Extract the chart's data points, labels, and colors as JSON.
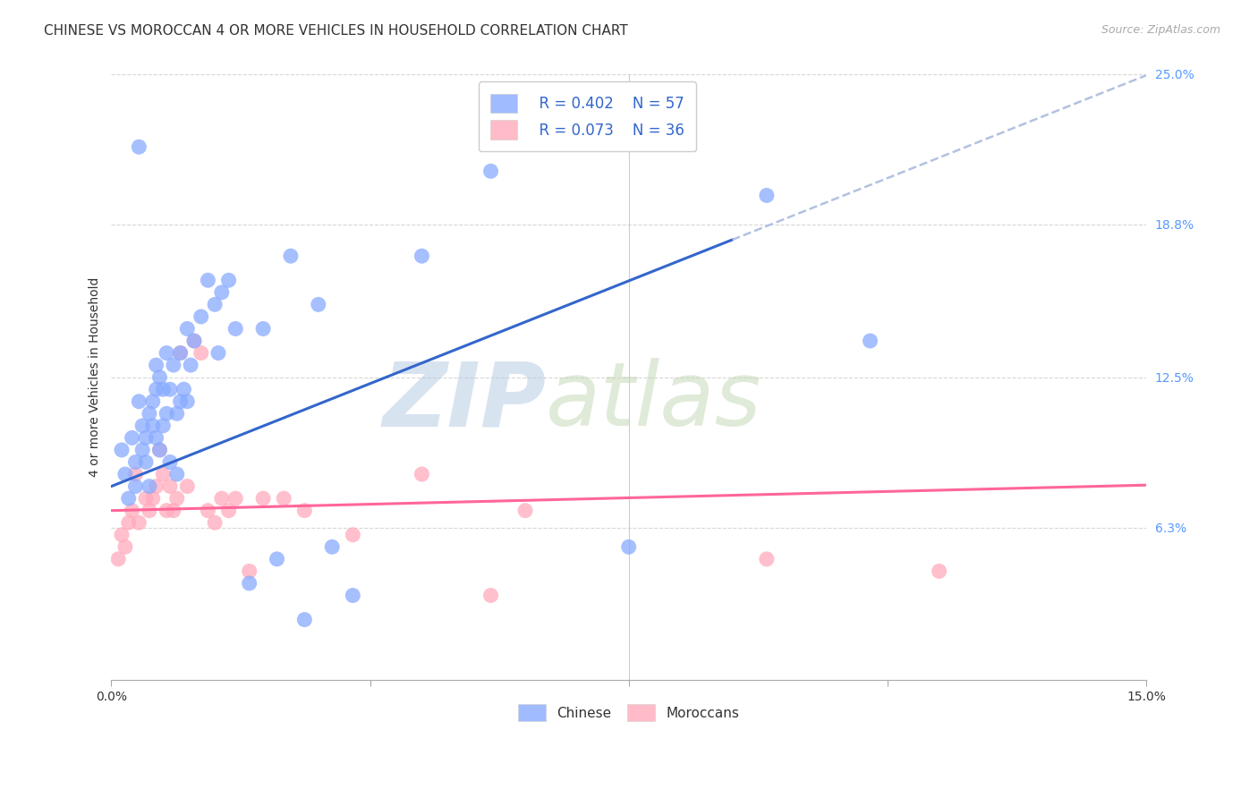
{
  "title": "CHINESE VS MOROCCAN 4 OR MORE VEHICLES IN HOUSEHOLD CORRELATION CHART",
  "source_text": "Source: ZipAtlas.com",
  "ylabel": "4 or more Vehicles in Household",
  "xlim": [
    0.0,
    15.0
  ],
  "ylim": [
    0.0,
    25.0
  ],
  "xtick_positions": [
    0.0,
    3.75,
    7.5,
    11.25,
    15.0
  ],
  "xtick_labels": [
    "0.0%",
    "",
    "",
    "",
    "15.0%"
  ],
  "ytick_positions": [
    6.3,
    12.5,
    18.8,
    25.0
  ],
  "ytick_labels": [
    "6.3%",
    "12.5%",
    "18.8%",
    "25.0%"
  ],
  "watermark_zip": "ZIP",
  "watermark_atlas": "atlas",
  "chinese_color": "#88aaff",
  "moroccan_color": "#ffaabb",
  "chinese_line_color": "#3366cc",
  "moroccan_line_color": "#ff6699",
  "chinese_R": 0.402,
  "chinese_N": 57,
  "moroccan_R": 0.073,
  "moroccan_N": 36,
  "chinese_line_intercept": 8.0,
  "chinese_line_slope": 1.13,
  "moroccan_line_intercept": 7.0,
  "moroccan_line_slope": 0.07,
  "chinese_line_solid_end": 9.0,
  "chinese_scatter_x": [
    0.15,
    0.2,
    0.25,
    0.3,
    0.35,
    0.35,
    0.4,
    0.4,
    0.45,
    0.45,
    0.5,
    0.5,
    0.55,
    0.55,
    0.6,
    0.6,
    0.65,
    0.65,
    0.65,
    0.7,
    0.7,
    0.75,
    0.75,
    0.8,
    0.8,
    0.85,
    0.85,
    0.9,
    0.95,
    0.95,
    1.0,
    1.0,
    1.05,
    1.1,
    1.1,
    1.15,
    1.2,
    1.3,
    1.4,
    1.5,
    1.55,
    1.6,
    1.7,
    1.8,
    2.0,
    2.2,
    2.4,
    2.6,
    2.8,
    3.0,
    3.2,
    3.5,
    4.5,
    5.5,
    7.5,
    9.5,
    11.0
  ],
  "chinese_scatter_y": [
    9.5,
    8.5,
    7.5,
    10.0,
    9.0,
    8.0,
    22.0,
    11.5,
    9.5,
    10.5,
    10.0,
    9.0,
    8.0,
    11.0,
    11.5,
    10.5,
    13.0,
    12.0,
    10.0,
    12.5,
    9.5,
    12.0,
    10.5,
    13.5,
    11.0,
    12.0,
    9.0,
    13.0,
    11.0,
    8.5,
    13.5,
    11.5,
    12.0,
    14.5,
    11.5,
    13.0,
    14.0,
    15.0,
    16.5,
    15.5,
    13.5,
    16.0,
    16.5,
    14.5,
    4.0,
    14.5,
    5.0,
    17.5,
    2.5,
    15.5,
    5.5,
    3.5,
    17.5,
    21.0,
    5.5,
    20.0,
    14.0
  ],
  "moroccan_scatter_x": [
    0.1,
    0.15,
    0.2,
    0.25,
    0.3,
    0.35,
    0.4,
    0.5,
    0.55,
    0.6,
    0.65,
    0.7,
    0.75,
    0.8,
    0.85,
    0.9,
    0.95,
    1.0,
    1.1,
    1.2,
    1.3,
    1.4,
    1.5,
    1.6,
    1.7,
    1.8,
    2.0,
    2.2,
    2.5,
    2.8,
    3.5,
    4.5,
    5.5,
    6.0,
    9.5,
    12.0
  ],
  "moroccan_scatter_y": [
    5.0,
    6.0,
    5.5,
    6.5,
    7.0,
    8.5,
    6.5,
    7.5,
    7.0,
    7.5,
    8.0,
    9.5,
    8.5,
    7.0,
    8.0,
    7.0,
    7.5,
    13.5,
    8.0,
    14.0,
    13.5,
    7.0,
    6.5,
    7.5,
    7.0,
    7.5,
    4.5,
    7.5,
    7.5,
    7.0,
    6.0,
    8.5,
    3.5,
    7.0,
    5.0,
    4.5
  ],
  "background_color": "#ffffff",
  "grid_color": "#cccccc",
  "title_fontsize": 11,
  "axis_label_fontsize": 10,
  "tick_fontsize": 10,
  "legend_fontsize": 12
}
